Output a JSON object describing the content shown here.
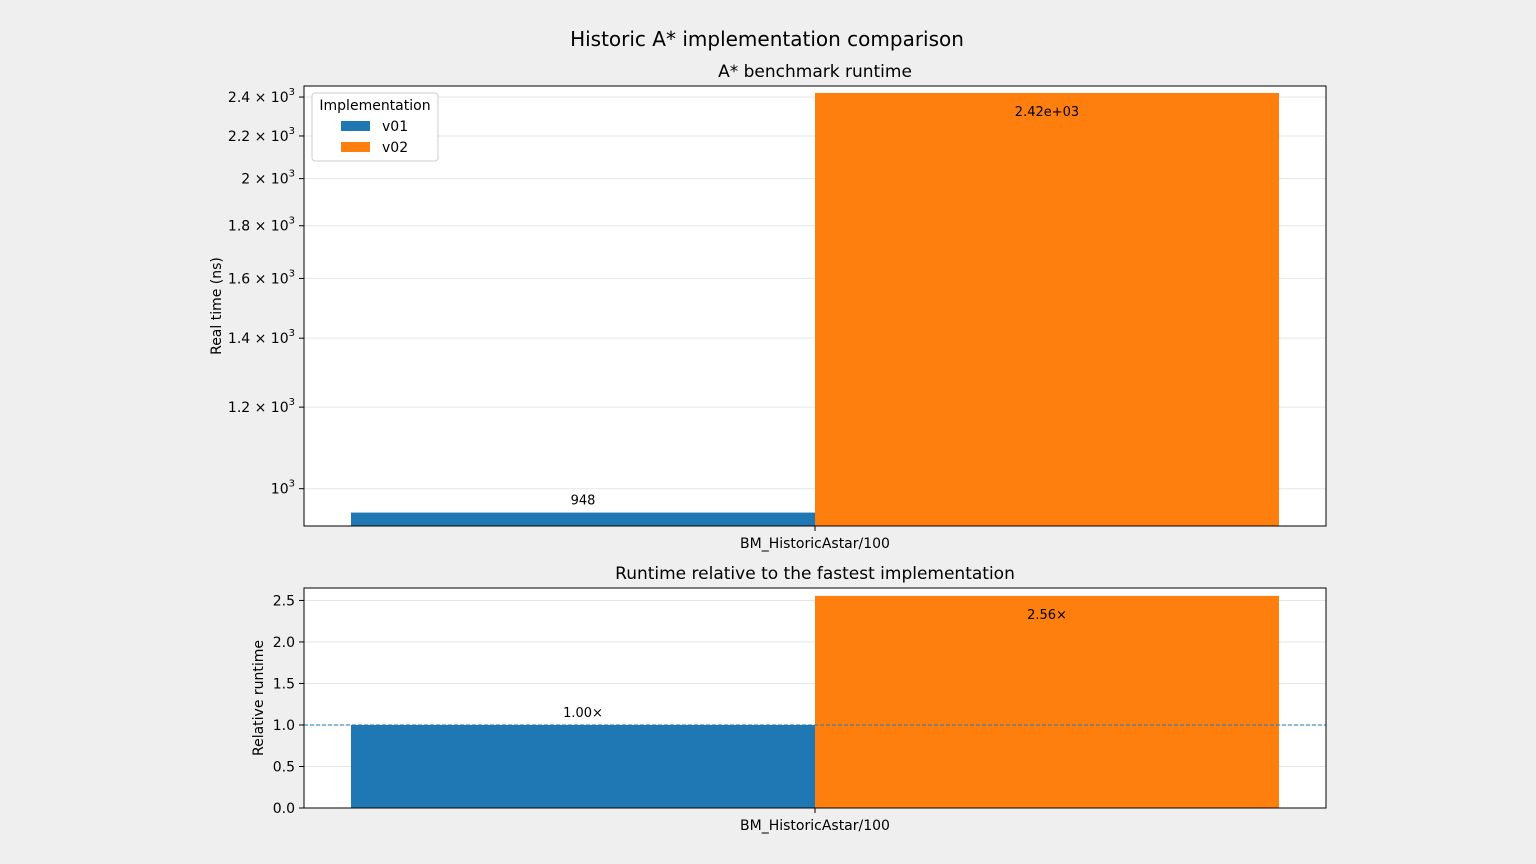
{
  "figure": {
    "title": "Historic A* implementation comparison",
    "background": "#efefef"
  },
  "chart_data": [
    {
      "type": "bar",
      "title": "A* benchmark runtime",
      "xlabel": "",
      "ylabel": "Real time (ns)",
      "yscale": "log",
      "ylim": [
        920,
        2460
      ],
      "categories": [
        "BM_HistoricAstar/100"
      ],
      "series": [
        {
          "name": "v01",
          "values": [
            948
          ],
          "color": "#1f77b4",
          "label": "948"
        },
        {
          "name": "v02",
          "values": [
            2422
          ],
          "color": "#ff7f0e",
          "label": "2.42e+03"
        }
      ],
      "yticks": [
        {
          "value": 1000,
          "base": "10",
          "exp": "3"
        },
        {
          "value": 1200,
          "base": "1.2 × 10",
          "exp": "3"
        },
        {
          "value": 1400,
          "base": "1.4 × 10",
          "exp": "3"
        },
        {
          "value": 1600,
          "base": "1.6 × 10",
          "exp": "3"
        },
        {
          "value": 1800,
          "base": "1.8 × 10",
          "exp": "3"
        },
        {
          "value": 2000,
          "base": "2 × 10",
          "exp": "3"
        },
        {
          "value": 2200,
          "base": "2.2 × 10",
          "exp": "3"
        },
        {
          "value": 2400,
          "base": "2.4 × 10",
          "exp": "3"
        }
      ],
      "grid": true,
      "legend": {
        "title": "Implementation",
        "placement": "upper-left"
      }
    },
    {
      "type": "bar",
      "title": "Runtime relative to the fastest implementation",
      "xlabel": "",
      "ylabel": "Relative runtime",
      "yscale": "linear",
      "ylim": [
        0,
        2.65
      ],
      "categories": [
        "BM_HistoricAstar/100"
      ],
      "series": [
        {
          "name": "v01",
          "values": [
            1.0
          ],
          "color": "#1f77b4",
          "label": "1.00×"
        },
        {
          "name": "v02",
          "values": [
            2.555
          ],
          "color": "#ff7f0e",
          "label": "2.56×"
        }
      ],
      "yticks": [
        {
          "value": 0,
          "label": "0.0"
        },
        {
          "value": 0.5,
          "label": "0.5"
        },
        {
          "value": 1.0,
          "label": "1.0"
        },
        {
          "value": 1.5,
          "label": "1.5"
        },
        {
          "value": 2.0,
          "label": "2.0"
        },
        {
          "value": 2.5,
          "label": "2.5"
        }
      ],
      "reference_line": {
        "value": 1.0,
        "style": "dashed",
        "color": "#1f77b4"
      },
      "grid": true
    }
  ]
}
